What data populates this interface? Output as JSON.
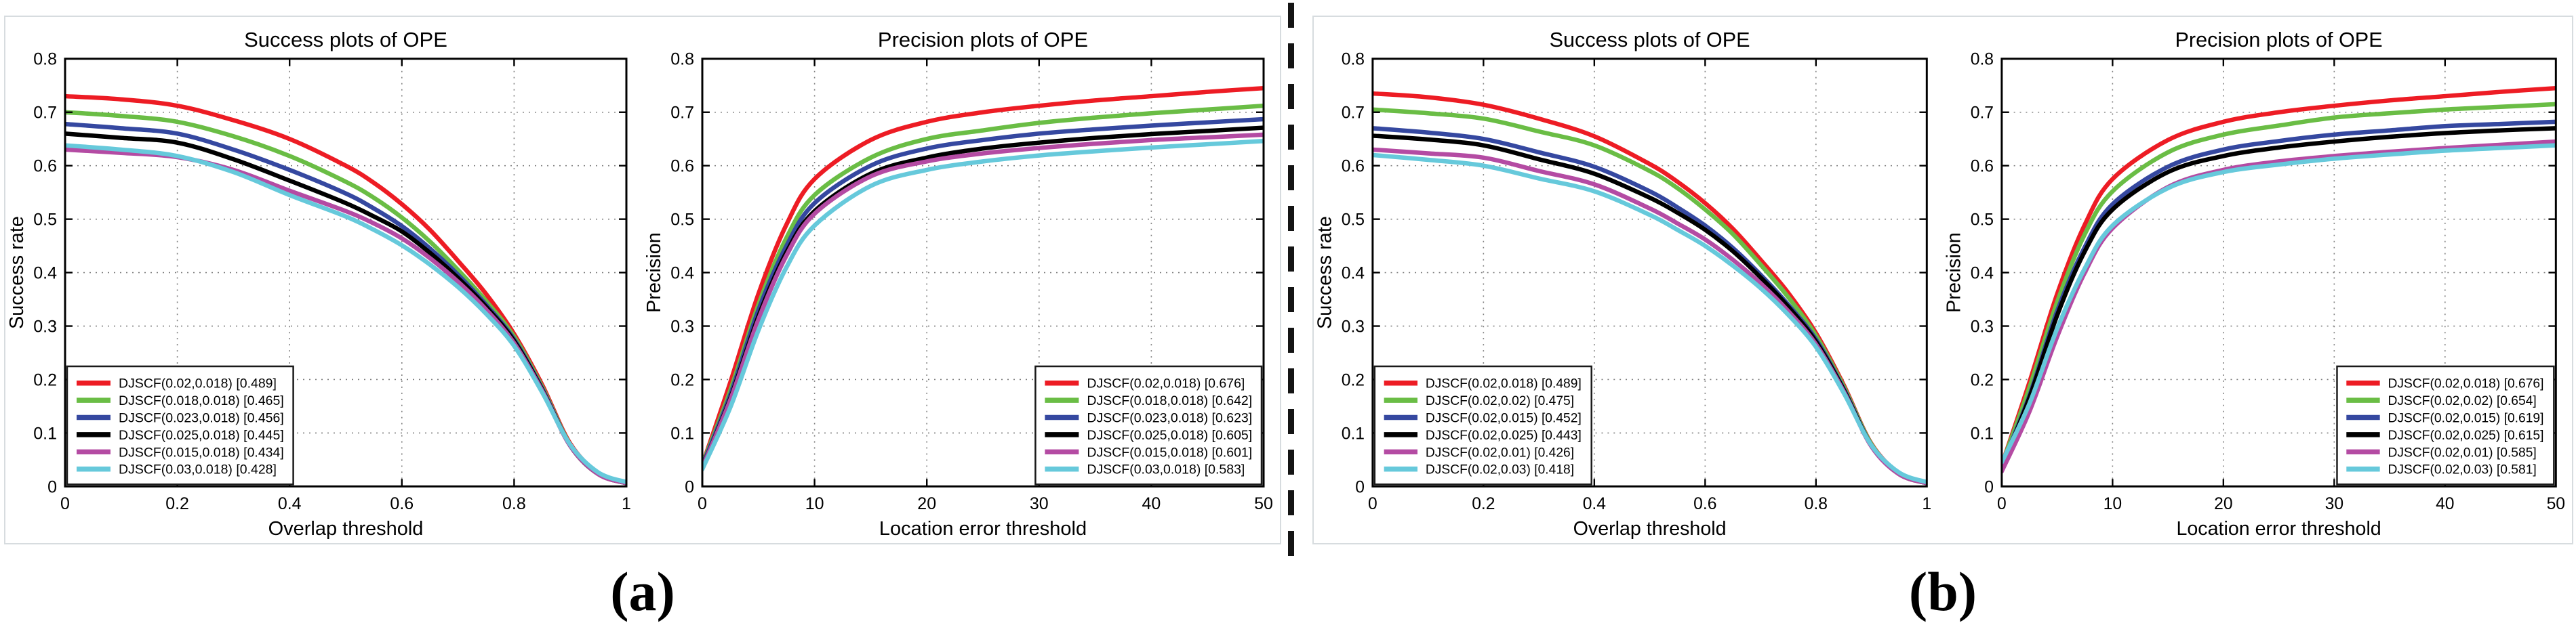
{
  "figure": {
    "panel_labels": [
      "(a)",
      "(b)"
    ],
    "accent_colors": {
      "red": "#ed1c24",
      "green": "#6abd45",
      "blue": "#3548a0",
      "black": "#000000",
      "magenta": "#b44ba3",
      "cyan": "#66c9db",
      "panel_border": "#d7dcdf",
      "grid": "#808080",
      "divider": "#141414"
    }
  },
  "chart_data": [
    {
      "id": "success-a",
      "type": "line",
      "title": "Success plots of OPE",
      "xlabel": "Overlap threshold",
      "ylabel": "Success rate",
      "xlim": [
        0,
        1
      ],
      "ylim": [
        0,
        0.8
      ],
      "xticks": [
        0,
        0.2,
        0.4,
        0.6,
        0.8,
        1
      ],
      "xtick_labels": [
        "0",
        "0.2",
        "0.4",
        "0.6",
        "0.8",
        "1"
      ],
      "yticks": [
        0,
        0.1,
        0.2,
        0.3,
        0.4,
        0.5,
        0.6,
        0.7,
        0.8
      ],
      "ytick_labels": [
        "0",
        "0.1",
        "0.2",
        "0.3",
        "0.4",
        "0.5",
        "0.6",
        "0.7",
        "0.8"
      ],
      "grid": true,
      "legend_position": "bottom-left",
      "x": [
        0,
        0.1,
        0.2,
        0.3,
        0.4,
        0.5,
        0.55,
        0.6,
        0.65,
        0.7,
        0.75,
        0.8,
        0.85,
        0.9,
        0.95,
        1
      ],
      "series": [
        {
          "name": "DJSCF(0.02,0.018) [0.489]",
          "color": "#ed1c24",
          "y": [
            0.73,
            0.724,
            0.712,
            0.685,
            0.65,
            0.6,
            0.568,
            0.528,
            0.48,
            0.422,
            0.36,
            0.285,
            0.19,
            0.08,
            0.025,
            0.006
          ]
        },
        {
          "name": "DJSCF(0.018,0.018) [0.465]",
          "color": "#6abd45",
          "y": [
            0.7,
            0.693,
            0.682,
            0.655,
            0.618,
            0.57,
            0.54,
            0.503,
            0.458,
            0.405,
            0.347,
            0.28,
            0.186,
            0.078,
            0.024,
            0.006
          ]
        },
        {
          "name": "DJSCF(0.023,0.018) [0.456]",
          "color": "#3548a0",
          "y": [
            0.678,
            0.67,
            0.66,
            0.63,
            0.592,
            0.548,
            0.52,
            0.487,
            0.445,
            0.396,
            0.34,
            0.275,
            0.183,
            0.077,
            0.024,
            0.006
          ]
        },
        {
          "name": "DJSCF(0.025,0.018) [0.445]",
          "color": "#000000",
          "y": [
            0.66,
            0.652,
            0.643,
            0.612,
            0.572,
            0.53,
            0.505,
            0.477,
            0.437,
            0.39,
            0.336,
            0.272,
            0.181,
            0.076,
            0.023,
            0.006
          ]
        },
        {
          "name": "DJSCF(0.015,0.018) [0.434]",
          "color": "#b44ba3",
          "y": [
            0.63,
            0.624,
            0.616,
            0.592,
            0.553,
            0.515,
            0.492,
            0.464,
            0.427,
            0.383,
            0.331,
            0.268,
            0.179,
            0.076,
            0.023,
            0.006
          ]
        },
        {
          "name": "DJSCF(0.03,0.018) [0.428]",
          "color": "#66c9db",
          "y": [
            0.638,
            0.63,
            0.618,
            0.588,
            0.545,
            0.505,
            0.48,
            0.451,
            0.415,
            0.373,
            0.323,
            0.263,
            0.176,
            0.078,
            0.026,
            0.008
          ]
        }
      ]
    },
    {
      "id": "precision-a",
      "type": "line",
      "title": "Precision plots of OPE",
      "xlabel": "Location error threshold",
      "ylabel": "Precision",
      "xlim": [
        0,
        50
      ],
      "ylim": [
        0,
        0.8
      ],
      "xticks": [
        0,
        10,
        20,
        30,
        40,
        50
      ],
      "xtick_labels": [
        "0",
        "10",
        "20",
        "30",
        "40",
        "50"
      ],
      "yticks": [
        0,
        0.1,
        0.2,
        0.3,
        0.4,
        0.5,
        0.6,
        0.7,
        0.8
      ],
      "ytick_labels": [
        "0",
        "0.1",
        "0.2",
        "0.3",
        "0.4",
        "0.5",
        "0.6",
        "0.7",
        "0.8"
      ],
      "grid": true,
      "legend_position": "bottom-right",
      "x": [
        0,
        2.5,
        5,
        7.5,
        10,
        15,
        20,
        25,
        30,
        35,
        40,
        45,
        50
      ],
      "series": [
        {
          "name": "DJSCF(0.02,0.018) [0.676]",
          "color": "#ed1c24",
          "y": [
            0.04,
            0.195,
            0.36,
            0.49,
            0.575,
            0.648,
            0.682,
            0.7,
            0.712,
            0.722,
            0.73,
            0.738,
            0.745
          ]
        },
        {
          "name": "DJSCF(0.018,0.018) [0.642]",
          "color": "#6abd45",
          "y": [
            0.04,
            0.18,
            0.34,
            0.465,
            0.545,
            0.615,
            0.65,
            0.666,
            0.68,
            0.69,
            0.698,
            0.705,
            0.712
          ]
        },
        {
          "name": "DJSCF(0.023,0.018) [0.623]",
          "color": "#3548a0",
          "y": [
            0.038,
            0.172,
            0.33,
            0.45,
            0.53,
            0.6,
            0.632,
            0.648,
            0.66,
            0.668,
            0.675,
            0.681,
            0.687
          ]
        },
        {
          "name": "DJSCF(0.025,0.018) [0.605]",
          "color": "#000000",
          "y": [
            0.035,
            0.165,
            0.318,
            0.438,
            0.515,
            0.585,
            0.615,
            0.632,
            0.643,
            0.652,
            0.659,
            0.665,
            0.671
          ]
        },
        {
          "name": "DJSCF(0.015,0.018) [0.601]",
          "color": "#b44ba3",
          "y": [
            0.035,
            0.162,
            0.312,
            0.432,
            0.51,
            0.58,
            0.608,
            0.623,
            0.633,
            0.641,
            0.648,
            0.653,
            0.658
          ]
        },
        {
          "name": "DJSCF(0.03,0.018) [0.583]",
          "color": "#66c9db",
          "y": [
            0.032,
            0.148,
            0.292,
            0.41,
            0.488,
            0.562,
            0.592,
            0.608,
            0.619,
            0.627,
            0.634,
            0.64,
            0.646
          ]
        }
      ]
    },
    {
      "id": "success-b",
      "type": "line",
      "title": "Success plots of OPE",
      "xlabel": "Overlap threshold",
      "ylabel": "Success rate",
      "xlim": [
        0,
        1
      ],
      "ylim": [
        0,
        0.8
      ],
      "xticks": [
        0,
        0.2,
        0.4,
        0.6,
        0.8,
        1
      ],
      "xtick_labels": [
        "0",
        "0.2",
        "0.4",
        "0.6",
        "0.8",
        "1"
      ],
      "yticks": [
        0,
        0.1,
        0.2,
        0.3,
        0.4,
        0.5,
        0.6,
        0.7,
        0.8
      ],
      "ytick_labels": [
        "0",
        "0.1",
        "0.2",
        "0.3",
        "0.4",
        "0.5",
        "0.6",
        "0.7",
        "0.8"
      ],
      "grid": true,
      "legend_position": "bottom-left",
      "x": [
        0,
        0.1,
        0.2,
        0.3,
        0.4,
        0.5,
        0.55,
        0.6,
        0.65,
        0.7,
        0.75,
        0.8,
        0.85,
        0.9,
        0.95,
        1
      ],
      "series": [
        {
          "name": "DJSCF(0.02,0.018) [0.489]",
          "color": "#ed1c24",
          "y": [
            0.735,
            0.728,
            0.714,
            0.688,
            0.655,
            0.603,
            0.57,
            0.53,
            0.482,
            0.424,
            0.362,
            0.287,
            0.19,
            0.08,
            0.025,
            0.006
          ]
        },
        {
          "name": "DJSCF(0.02,0.02) [0.475]",
          "color": "#6abd45",
          "y": [
            0.705,
            0.698,
            0.688,
            0.664,
            0.638,
            0.59,
            0.558,
            0.518,
            0.472,
            0.415,
            0.354,
            0.282,
            0.187,
            0.079,
            0.024,
            0.006
          ]
        },
        {
          "name": "DJSCF(0.02,0.015) [0.452]",
          "color": "#3548a0",
          "y": [
            0.67,
            0.662,
            0.65,
            0.625,
            0.598,
            0.552,
            0.522,
            0.488,
            0.446,
            0.396,
            0.34,
            0.275,
            0.183,
            0.077,
            0.024,
            0.006
          ]
        },
        {
          "name": "DJSCF(0.02,0.025) [0.443]",
          "color": "#000000",
          "y": [
            0.656,
            0.649,
            0.638,
            0.612,
            0.585,
            0.54,
            0.512,
            0.48,
            0.44,
            0.391,
            0.336,
            0.271,
            0.181,
            0.076,
            0.023,
            0.006
          ]
        },
        {
          "name": "DJSCF(0.02,0.01) [0.426]",
          "color": "#b44ba3",
          "y": [
            0.63,
            0.623,
            0.615,
            0.59,
            0.565,
            0.52,
            0.492,
            0.462,
            0.424,
            0.38,
            0.328,
            0.266,
            0.178,
            0.075,
            0.023,
            0.006
          ]
        },
        {
          "name": "DJSCF(0.02,0.03) [0.418]",
          "color": "#66c9db",
          "y": [
            0.62,
            0.611,
            0.6,
            0.576,
            0.552,
            0.508,
            0.48,
            0.45,
            0.413,
            0.371,
            0.321,
            0.261,
            0.175,
            0.077,
            0.026,
            0.008
          ]
        }
      ]
    },
    {
      "id": "precision-b",
      "type": "line",
      "title": "Precision plots of OPE",
      "xlabel": "Location error threshold",
      "ylabel": "Precision",
      "xlim": [
        0,
        50
      ],
      "ylim": [
        0,
        0.8
      ],
      "xticks": [
        0,
        10,
        20,
        30,
        40,
        50
      ],
      "xtick_labels": [
        "0",
        "10",
        "20",
        "30",
        "40",
        "50"
      ],
      "yticks": [
        0,
        0.1,
        0.2,
        0.3,
        0.4,
        0.5,
        0.6,
        0.7,
        0.8
      ],
      "ytick_labels": [
        "0",
        "0.1",
        "0.2",
        "0.3",
        "0.4",
        "0.5",
        "0.6",
        "0.7",
        "0.8"
      ],
      "grid": true,
      "legend_position": "bottom-right",
      "x": [
        0,
        2.5,
        5,
        7.5,
        10,
        15,
        20,
        25,
        30,
        35,
        40,
        45,
        50
      ],
      "series": [
        {
          "name": "DJSCF(0.02,0.018) [0.676]",
          "color": "#ed1c24",
          "y": [
            0.04,
            0.195,
            0.36,
            0.49,
            0.575,
            0.648,
            0.682,
            0.7,
            0.712,
            0.722,
            0.73,
            0.738,
            0.745
          ]
        },
        {
          "name": "DJSCF(0.02,0.02) [0.654]",
          "color": "#6abd45",
          "y": [
            0.04,
            0.185,
            0.345,
            0.472,
            0.552,
            0.625,
            0.658,
            0.675,
            0.69,
            0.698,
            0.705,
            0.71,
            0.715
          ]
        },
        {
          "name": "DJSCF(0.02,0.015) [0.619]",
          "color": "#3548a0",
          "y": [
            0.038,
            0.17,
            0.328,
            0.448,
            0.528,
            0.598,
            0.63,
            0.646,
            0.658,
            0.666,
            0.674,
            0.678,
            0.682
          ]
        },
        {
          "name": "DJSCF(0.02,0.025) [0.615]",
          "color": "#000000",
          "y": [
            0.036,
            0.166,
            0.32,
            0.44,
            0.518,
            0.588,
            0.618,
            0.634,
            0.645,
            0.654,
            0.661,
            0.666,
            0.67
          ]
        },
        {
          "name": "DJSCF(0.02,0.01) [0.585]",
          "color": "#b44ba3",
          "y": [
            0.028,
            0.14,
            0.28,
            0.4,
            0.483,
            0.56,
            0.592,
            0.608,
            0.618,
            0.626,
            0.633,
            0.639,
            0.645
          ]
        },
        {
          "name": "DJSCF(0.02,0.03) [0.581]",
          "color": "#66c9db",
          "y": [
            0.045,
            0.155,
            0.295,
            0.408,
            0.488,
            0.558,
            0.588,
            0.602,
            0.613,
            0.621,
            0.628,
            0.633,
            0.638
          ]
        }
      ]
    }
  ]
}
